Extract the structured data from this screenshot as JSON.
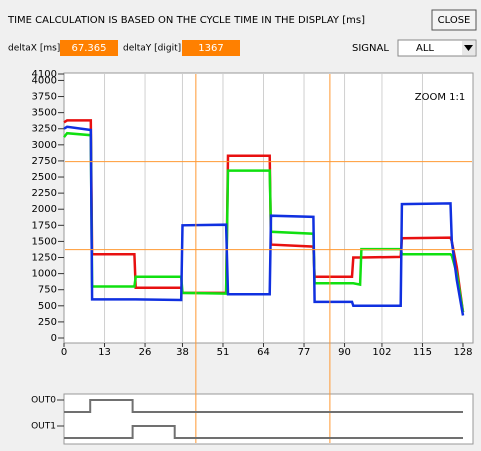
{
  "header": {
    "title": "TIME CALCULATION IS BASED ON THE CYCLE TIME IN THE DISPLAY [ms]",
    "close": "CLOSE",
    "delta_x_label": "deltaX [ms]",
    "delta_x_value": "67.365",
    "delta_y_label": "deltaY [digit]",
    "delta_y_value": "1367",
    "signal_label": "SIGNAL",
    "signal_value": "ALL"
  },
  "chart_data": [
    {
      "type": "line",
      "annotation": "ZOOM 1:1",
      "xlim": [
        0,
        128
      ],
      "xticks": [
        0,
        13,
        26,
        38,
        51,
        64,
        77,
        90,
        102,
        115,
        128
      ],
      "ylim": [
        0,
        4100
      ],
      "yticks": [
        0,
        250,
        500,
        750,
        1000,
        1250,
        1500,
        1750,
        2000,
        2250,
        2500,
        2750,
        3000,
        3250,
        3500,
        3750,
        4000,
        4100
      ],
      "grid": true,
      "cursor_color": "#ff9933",
      "cursor_x": [
        42.3,
        85.3
      ],
      "cursor_y": [
        2740,
        1373
      ],
      "x": [
        0,
        1,
        8.6,
        9,
        22.6,
        23,
        37.6,
        38,
        52,
        52.6,
        66,
        66.4,
        80,
        80.4,
        92.4,
        92.8,
        95,
        95.4,
        108,
        108.4,
        124,
        124.4,
        126,
        128
      ],
      "series": [
        {
          "color": "#e81010",
          "values": [
            3350,
            3380,
            3380,
            1300,
            1300,
            780,
            780,
            700,
            700,
            2830,
            2830,
            1450,
            1420,
            950,
            950,
            1250,
            1250,
            1250,
            1260,
            1550,
            1560,
            1500,
            1100,
            400
          ]
        },
        {
          "color": "#10e010",
          "values": [
            3120,
            3180,
            3150,
            800,
            800,
            950,
            950,
            700,
            690,
            2600,
            2600,
            1650,
            1620,
            850,
            850,
            850,
            830,
            1380,
            1380,
            1300,
            1300,
            1280,
            1000,
            400
          ]
        },
        {
          "color": "#1030e0",
          "values": [
            3250,
            3280,
            3230,
            600,
            600,
            600,
            590,
            1750,
            1760,
            680,
            680,
            1900,
            1880,
            560,
            560,
            500,
            500,
            500,
            500,
            2080,
            2090,
            1500,
            900,
            350
          ]
        }
      ]
    },
    {
      "type": "digital",
      "xlim": [
        0,
        128
      ],
      "color": "#707070",
      "series": [
        {
          "name": "OUT0",
          "x": [
            0,
            8.4,
            8.4,
            22,
            22,
            128
          ],
          "values": [
            0,
            0,
            1,
            1,
            0,
            0
          ]
        },
        {
          "name": "OUT1",
          "x": [
            0,
            22,
            22,
            35.5,
            35.5,
            128
          ],
          "values": [
            0,
            0,
            1,
            1,
            0,
            0
          ]
        }
      ]
    }
  ]
}
